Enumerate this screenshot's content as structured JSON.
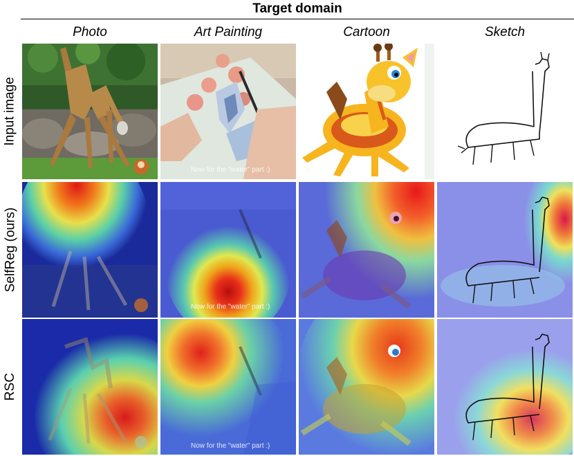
{
  "header": {
    "title": "Target domain"
  },
  "columns": [
    {
      "label": "Photo"
    },
    {
      "label": "Art Painting"
    },
    {
      "label": "Cartoon"
    },
    {
      "label": "Sketch"
    }
  ],
  "rows": [
    {
      "label": "Input image"
    },
    {
      "label": "SelfReg (ours)"
    },
    {
      "label": "RSC"
    }
  ],
  "watermark": {
    "text": "Now for the \"water\" part :)"
  }
}
